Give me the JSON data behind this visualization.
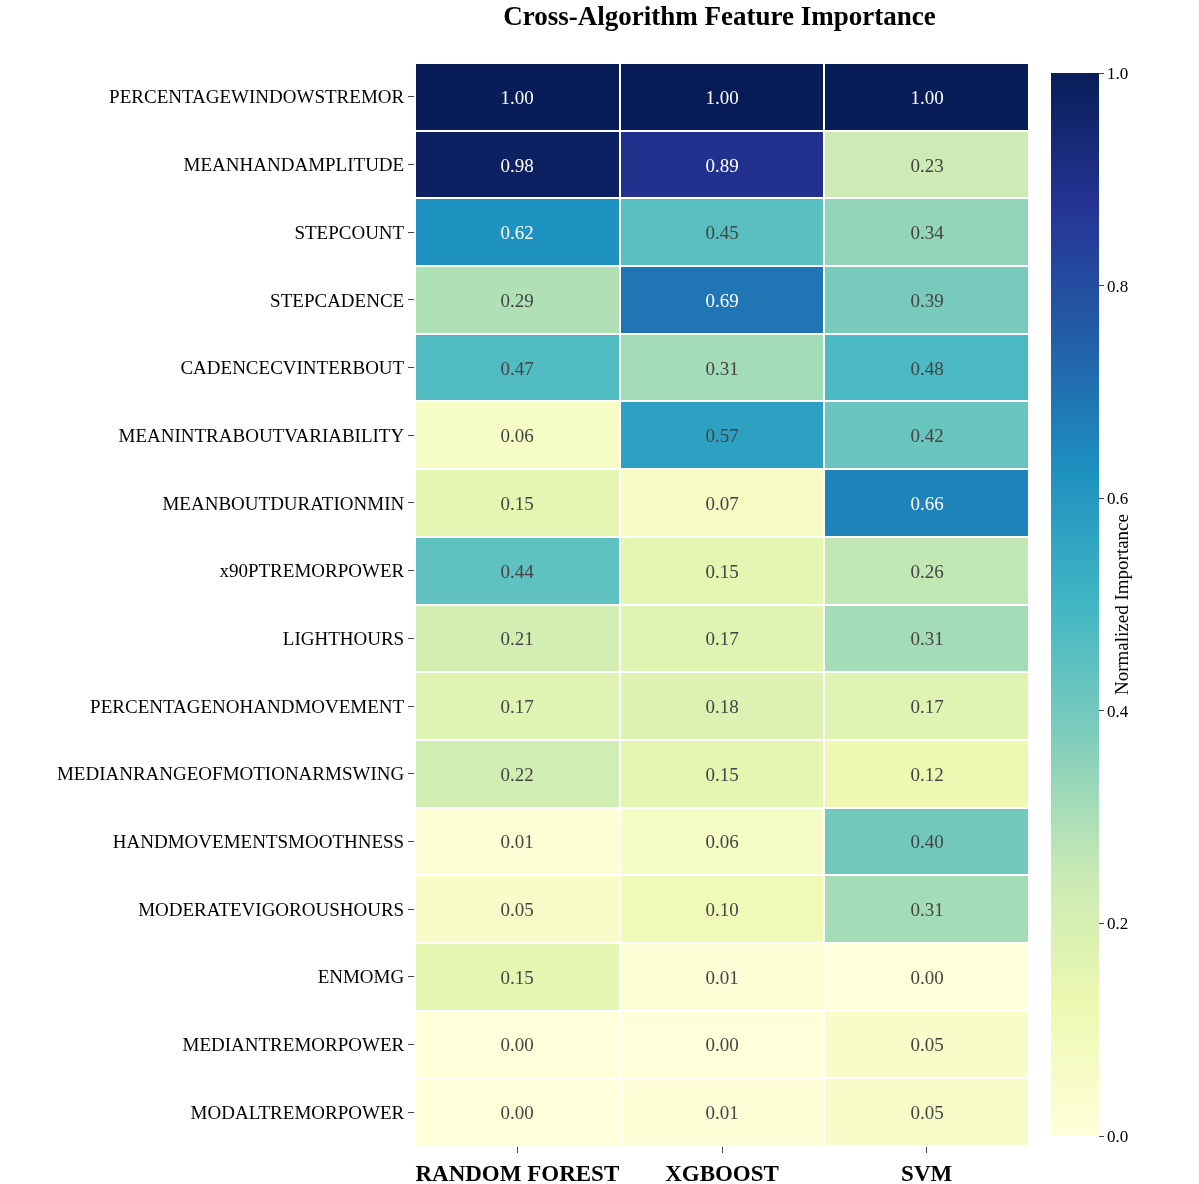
{
  "chart_data": {
    "type": "heatmap",
    "title": "Cross-Algorithm Feature Importance",
    "clabel": "Normalized Importance",
    "categories": [
      "RANDOM FOREST",
      "XGBOOST",
      "SVM"
    ],
    "y_categories": [
      "PERCENTAGEWINDOWSTREMOR",
      "MEANHANDAMPLITUDE",
      "STEPCOUNT",
      "STEPCADENCE",
      "CADENCECVINTERBOUT",
      "MEANINTRABOUTVARIABILITY",
      "MEANBOUTDURATIONMIN",
      "x90PTREMORPOWER",
      "LIGHTHOURS",
      "PERCENTAGENOHANDMOVEMENT",
      "MEDIANRANGEOFMOTIONARMSWING",
      "HANDMOVEMENTSMOOTHNESS",
      "MODERATEVIGOROUSHOURS",
      "ENMOMG",
      "MEDIANTREMORPOWER",
      "MODALTREMORPOWER"
    ],
    "cells": [
      [
        1.0,
        1.0,
        1.0
      ],
      [
        0.98,
        0.89,
        0.23
      ],
      [
        0.62,
        0.45,
        0.34
      ],
      [
        0.29,
        0.69,
        0.39
      ],
      [
        0.47,
        0.31,
        0.48
      ],
      [
        0.06,
        0.57,
        0.42
      ],
      [
        0.15,
        0.07,
        0.66
      ],
      [
        0.44,
        0.15,
        0.26
      ],
      [
        0.21,
        0.17,
        0.31
      ],
      [
        0.17,
        0.18,
        0.17
      ],
      [
        0.22,
        0.15,
        0.12
      ],
      [
        0.01,
        0.06,
        0.4
      ],
      [
        0.05,
        0.1,
        0.31
      ],
      [
        0.15,
        0.01,
        0.0
      ],
      [
        0.0,
        0.0,
        0.05
      ],
      [
        0.0,
        0.01,
        0.05
      ]
    ],
    "cell_labels": [
      [
        "1.00",
        "1.00",
        "1.00"
      ],
      [
        "0.98",
        "0.89",
        "0.23"
      ],
      [
        "0.62",
        "0.45",
        "0.34"
      ],
      [
        "0.29",
        "0.69",
        "0.39"
      ],
      [
        "0.47",
        "0.31",
        "0.48"
      ],
      [
        "0.06",
        "0.57",
        "0.42"
      ],
      [
        "0.15",
        "0.07",
        "0.66"
      ],
      [
        "0.44",
        "0.15",
        "0.26"
      ],
      [
        "0.21",
        "0.17",
        "0.31"
      ],
      [
        "0.17",
        "0.18",
        "0.17"
      ],
      [
        "0.22",
        "0.15",
        "0.12"
      ],
      [
        "0.01",
        "0.06",
        "0.40"
      ],
      [
        "0.05",
        "0.10",
        "0.31"
      ],
      [
        "0.15",
        "0.01",
        "0.00"
      ],
      [
        "0.00",
        "0.00",
        "0.05"
      ],
      [
        "0.00",
        "0.01",
        "0.05"
      ]
    ],
    "clim": [
      0,
      1
    ],
    "cticks": [
      {
        "value": 0,
        "label": "0.0"
      },
      {
        "value": 0.2,
        "label": "0.2"
      },
      {
        "value": 0.4,
        "label": "0.4"
      },
      {
        "value": 0.6,
        "label": "0.6"
      },
      {
        "value": 0.8,
        "label": "0.8"
      },
      {
        "value": 1,
        "label": "1.0"
      }
    ]
  }
}
